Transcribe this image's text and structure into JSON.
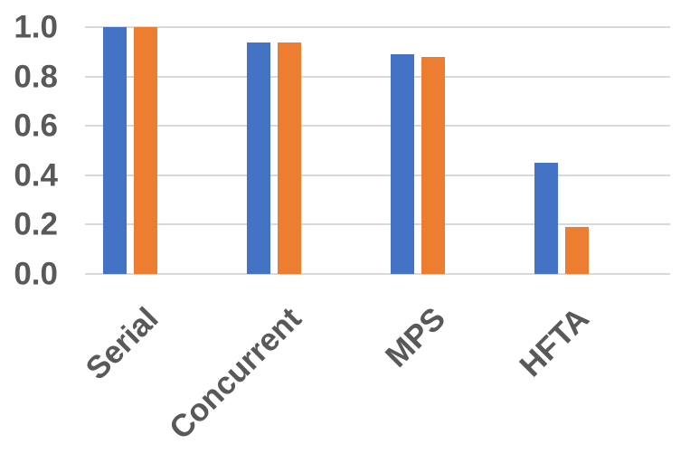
{
  "chart_data": {
    "type": "bar",
    "title": "",
    "xlabel": "",
    "ylabel": "",
    "categories": [
      "Serial",
      "Concurrent",
      "MPS",
      "HFTA"
    ],
    "series": [
      {
        "name": "blue-series",
        "color": "#4472C4",
        "values": [
          1.0,
          0.94,
          0.89,
          0.45
        ]
      },
      {
        "name": "orange-series",
        "color": "#ED7D31",
        "values": [
          1.0,
          0.94,
          0.88,
          0.19
        ]
      }
    ],
    "ylim": [
      0,
      1.0
    ],
    "yticks": [
      {
        "value": 1.0,
        "label": "1.0"
      },
      {
        "value": 0.8,
        "label": "0.8"
      },
      {
        "value": 0.6,
        "label": "0.6"
      },
      {
        "value": 0.4,
        "label": "0.4"
      },
      {
        "value": 0.2,
        "label": "0.2"
      },
      {
        "value": 0.0,
        "label": "0.0"
      }
    ],
    "grid": true,
    "legend": "none",
    "colors": {
      "axis_text": "#595959",
      "gridline": "#D9D9D9",
      "background": "#FFFFFF"
    }
  }
}
